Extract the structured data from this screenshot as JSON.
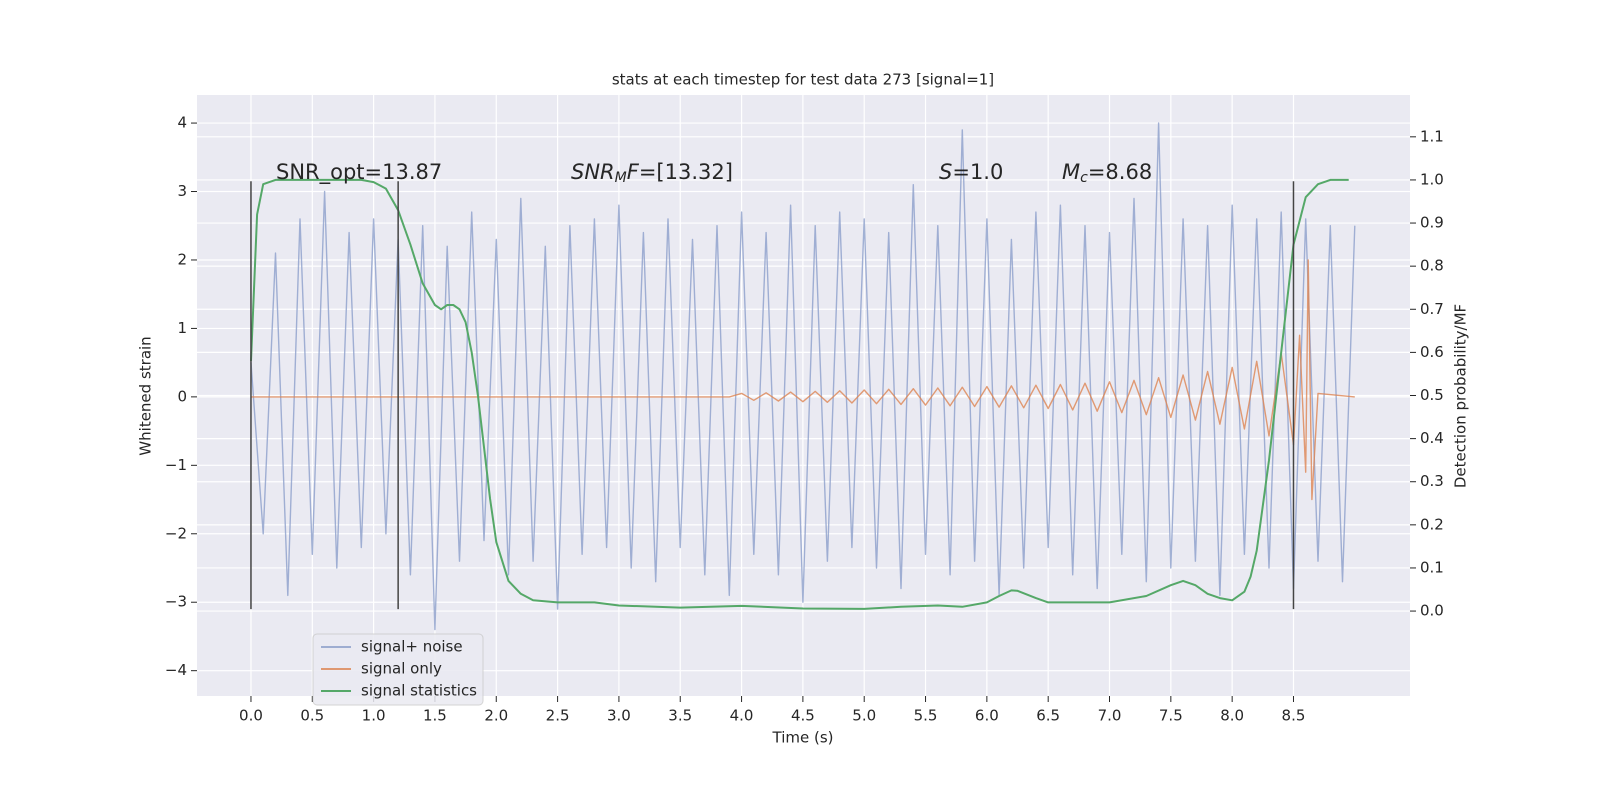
{
  "chart_data": {
    "type": "line",
    "title": "stats at each timestep for test data 273 [signal=1]",
    "xlabel": "Time (s)",
    "ylabel": "Whitened strain",
    "y2label": "Detection probability/MF",
    "annotations": [
      [
        {
          "text": "SNR_opt=13.87"
        }
      ],
      [
        {
          "text": "SNR",
          "italic": true
        },
        {
          "text": "M",
          "italic": true,
          "sub": true
        },
        {
          "text": "F",
          "italic": true
        },
        {
          "text": "=[13.32]"
        }
      ],
      [
        {
          "text": "S",
          "italic": true
        },
        {
          "text": "=1.0"
        }
      ],
      [
        {
          "text": "M",
          "italic": true
        },
        {
          "text": "c",
          "italic": true,
          "sub": true
        },
        {
          "text": "=8.68"
        }
      ]
    ],
    "xlim": [
      -0.44,
      9.45
    ],
    "ylim": [
      -4.37,
      4.41
    ],
    "y2lim": [
      -0.197,
      1.197
    ],
    "xticks": [
      {
        "value": 0,
        "label": "0.0"
      },
      0.5,
      {
        "value": 1,
        "label": "1.0"
      },
      1.5,
      {
        "value": 2,
        "label": "2.0"
      },
      2.5,
      {
        "value": 3,
        "label": "3.0"
      },
      3.5,
      {
        "value": 4,
        "label": "4.0"
      },
      4.5,
      {
        "value": 5,
        "label": "5.0"
      },
      5.5,
      {
        "value": 6,
        "label": "6.0"
      },
      6.5,
      {
        "value": 7,
        "label": "7.0"
      },
      7.5,
      {
        "value": 8,
        "label": "8.0"
      },
      8.5
    ],
    "yticks": [
      {
        "value": -4,
        "label": "−4"
      },
      {
        "value": -3,
        "label": "−3"
      },
      {
        "value": -2,
        "label": "−2"
      },
      {
        "value": -1,
        "label": "−1"
      },
      0,
      1,
      2,
      3,
      4
    ],
    "y2ticks": [
      {
        "value": 0,
        "label": "0.0"
      },
      0.1,
      0.2,
      0.3,
      0.4,
      0.5,
      0.6,
      0.7,
      0.8,
      0.9,
      {
        "value": 1,
        "label": "1.0"
      },
      1.1
    ],
    "grid": true,
    "legend": "lower left",
    "vlines": {
      "x": [
        0,
        1.2,
        8.5
      ],
      "ymin": -3.1,
      "ymax": 3.15,
      "color": "#444444"
    },
    "series": [
      {
        "name": "signal+ noise",
        "color": "#8c9fca",
        "x": [
          0,
          0.1,
          0.2,
          0.3,
          0.4,
          0.5,
          0.6,
          0.7,
          0.8,
          0.9,
          1,
          1.1,
          1.2,
          1.3,
          1.4,
          1.5,
          1.6,
          1.7,
          1.8,
          1.9,
          2,
          2.1,
          2.2,
          2.3,
          2.4,
          2.5,
          2.6,
          2.7,
          2.8,
          2.9,
          3,
          3.1,
          3.2,
          3.3,
          3.4,
          3.5,
          3.6,
          3.7,
          3.8,
          3.9,
          4,
          4.1,
          4.2,
          4.3,
          4.4,
          4.5,
          4.6,
          4.7,
          4.8,
          4.9,
          5,
          5.1,
          5.2,
          5.3,
          5.4,
          5.5,
          5.6,
          5.7,
          5.8,
          5.9,
          6,
          6.1,
          6.2,
          6.3,
          6.4,
          6.5,
          6.6,
          6.7,
          6.8,
          6.9,
          7,
          7.1,
          7.2,
          7.3,
          7.4,
          7.5,
          7.6,
          7.7,
          7.8,
          7.9,
          8,
          8.1,
          8.2,
          8.3,
          8.4,
          8.5,
          8.6,
          8.7,
          8.8,
          8.9,
          9
        ],
        "values": [
          0.5,
          -2.0,
          2.1,
          -2.9,
          2.6,
          -2.3,
          3.0,
          -2.5,
          2.4,
          -2.2,
          2.6,
          -2.0,
          2.3,
          -2.6,
          2.5,
          -3.4,
          2.2,
          -2.4,
          2.7,
          -2.1,
          2.3,
          -2.6,
          2.9,
          -2.4,
          2.2,
          -3.1,
          2.5,
          -2.3,
          2.6,
          -2.2,
          2.8,
          -2.5,
          2.4,
          -2.7,
          2.6,
          -2.2,
          2.3,
          -2.6,
          2.5,
          -2.9,
          2.7,
          -2.3,
          2.4,
          -2.6,
          2.8,
          -3.0,
          2.5,
          -2.4,
          2.7,
          -2.2,
          2.6,
          -2.5,
          2.4,
          -2.8,
          3.1,
          -2.3,
          2.5,
          -2.6,
          3.9,
          -2.4,
          2.6,
          -2.9,
          2.3,
          -2.5,
          2.7,
          -2.2,
          2.8,
          -2.6,
          2.5,
          -2.8,
          2.4,
          -2.3,
          2.9,
          -2.7,
          4.0,
          -2.5,
          2.6,
          -2.4,
          2.5,
          -2.9,
          2.8,
          -2.3,
          2.6,
          -2.5,
          2.7,
          -2.8,
          2.6,
          -2.4,
          2.5,
          -2.7,
          2.5
        ]
      },
      {
        "name": "signal only",
        "color": "#dd8452",
        "x": [
          0,
          3.9,
          4,
          4.1,
          4.2,
          4.3,
          4.4,
          4.5,
          4.6,
          4.7,
          4.8,
          4.9,
          5,
          5.1,
          5.2,
          5.3,
          5.4,
          5.5,
          5.6,
          5.7,
          5.8,
          5.9,
          6,
          6.1,
          6.2,
          6.3,
          6.4,
          6.5,
          6.6,
          6.7,
          6.8,
          6.9,
          7,
          7.1,
          7.2,
          7.3,
          7.4,
          7.5,
          7.6,
          7.7,
          7.8,
          7.9,
          8,
          8.1,
          8.2,
          8.3,
          8.4,
          8.5,
          8.55,
          8.6,
          8.62,
          8.65,
          8.7,
          9
        ],
        "values": [
          0,
          0,
          0.05,
          -0.05,
          0.06,
          -0.06,
          0.07,
          -0.07,
          0.08,
          -0.08,
          0.09,
          -0.09,
          0.1,
          -0.1,
          0.11,
          -0.11,
          0.12,
          -0.12,
          0.13,
          -0.13,
          0.14,
          -0.14,
          0.15,
          -0.15,
          0.16,
          -0.16,
          0.17,
          -0.17,
          0.18,
          -0.19,
          0.2,
          -0.21,
          0.22,
          -0.23,
          0.24,
          -0.26,
          0.28,
          -0.3,
          0.32,
          -0.34,
          0.37,
          -0.4,
          0.43,
          -0.47,
          0.52,
          -0.57,
          0.64,
          -0.7,
          0.9,
          -1.1,
          2.0,
          -1.5,
          0.05,
          0
        ]
      },
      {
        "name": "signal statistics",
        "color": "#55a868",
        "axis": "y2",
        "x": [
          0,
          0.05,
          0.1,
          0.2,
          0.5,
          0.9,
          1,
          1.1,
          1.2,
          1.3,
          1.4,
          1.5,
          1.55,
          1.6,
          1.65,
          1.7,
          1.75,
          1.8,
          1.85,
          1.9,
          1.95,
          2,
          2.1,
          2.2,
          2.3,
          2.5,
          2.8,
          3,
          3.5,
          4,
          4.5,
          5,
          5.3,
          5.6,
          5.8,
          6,
          6.1,
          6.2,
          6.25,
          6.4,
          6.5,
          6.8,
          7,
          7.3,
          7.5,
          7.6,
          7.7,
          7.8,
          7.9,
          8,
          8.1,
          8.15,
          8.2,
          8.3,
          8.4,
          8.5,
          8.6,
          8.7,
          8.8,
          8.9,
          8.95
        ],
        "values": [
          0.58,
          0.92,
          0.99,
          1.0,
          1.0,
          1.0,
          0.995,
          0.98,
          0.93,
          0.85,
          0.76,
          0.71,
          0.7,
          0.71,
          0.71,
          0.7,
          0.67,
          0.6,
          0.5,
          0.38,
          0.26,
          0.16,
          0.07,
          0.04,
          0.025,
          0.02,
          0.02,
          0.013,
          0.008,
          0.012,
          0.006,
          0.005,
          0.01,
          0.013,
          0.01,
          0.02,
          0.035,
          0.048,
          0.047,
          0.03,
          0.02,
          0.02,
          0.02,
          0.035,
          0.06,
          0.07,
          0.06,
          0.04,
          0.03,
          0.025,
          0.045,
          0.08,
          0.14,
          0.35,
          0.6,
          0.85,
          0.96,
          0.99,
          1.0,
          1.0,
          1.0
        ]
      }
    ]
  }
}
